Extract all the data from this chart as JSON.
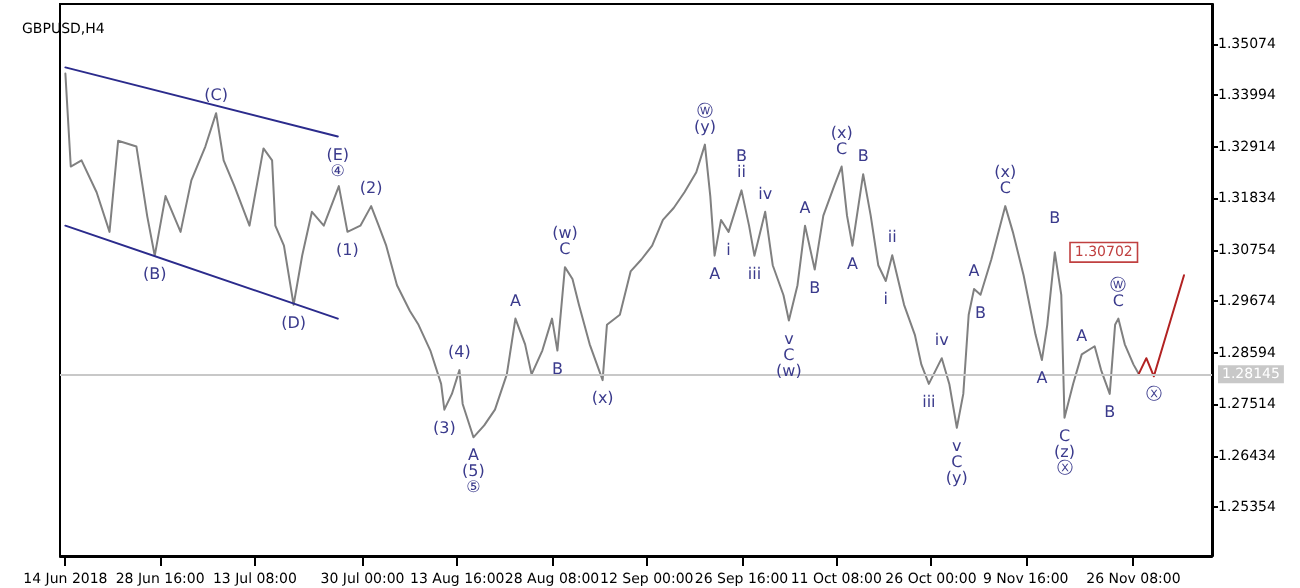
{
  "chart_data": {
    "type": "line",
    "title": "GBPUSD,H4",
    "grid": false,
    "marker": "none",
    "line_style": "solid",
    "xlim": [
      "2018-06-13T04:00",
      "2018-12-08T12:00"
    ],
    "ylim": [
      1.2433,
      1.3591
    ],
    "xticks": [
      {
        "value": "2018-06-14T00:00",
        "label": "14 Jun 2018"
      },
      {
        "value": "2018-06-28T16:00",
        "label": "28 Jun 16:00"
      },
      {
        "value": "2018-07-13T08:00",
        "label": "13 Jul 08:00"
      },
      {
        "value": "2018-07-30T00:00",
        "label": "30 Jul 00:00"
      },
      {
        "value": "2018-08-13T16:00",
        "label": "13 Aug 16:00"
      },
      {
        "value": "2018-08-28T08:00",
        "label": "28 Aug 08:00"
      },
      {
        "value": "2018-09-12T00:00",
        "label": "12 Sep 00:00"
      },
      {
        "value": "2018-09-26T16:00",
        "label": "26 Sep 16:00"
      },
      {
        "value": "2018-10-11T08:00",
        "label": "11 Oct 08:00"
      },
      {
        "value": "2018-10-26T00:00",
        "label": "26 Oct 00:00"
      },
      {
        "value": "2018-11-09T16:00",
        "label": "9 Nov 16:00"
      },
      {
        "value": "2018-11-26T08:00",
        "label": "26 Nov 08:00"
      }
    ],
    "yticks": [
      1.25354,
      1.26434,
      1.27514,
      1.28594,
      1.29674,
      1.30754,
      1.31834,
      1.32914,
      1.33994,
      1.35074
    ],
    "series": [
      {
        "color": "#808080",
        "x": [
          "2018-06-14T00:00",
          "2018-06-14T20:00",
          "2018-06-16T12:00",
          "2018-06-18T20:00",
          "2018-06-20T20:00",
          "2018-06-22T04:00",
          "2018-06-25T00:00",
          "2018-06-26T16:00",
          "2018-06-27T20:00",
          "2018-06-29T12:00",
          "2018-07-01T20:00",
          "2018-07-03T12:00",
          "2018-07-05T16:00",
          "2018-07-07T08:00",
          "2018-07-08T12:00",
          "2018-07-10T04:00",
          "2018-07-12T12:00",
          "2018-07-14T16:00",
          "2018-07-16T00:00",
          "2018-07-16T12:00",
          "2018-07-17T20:00",
          "2018-07-19T08:00",
          "2018-07-20T16:00",
          "2018-07-22T04:00",
          "2018-07-24T00:00",
          "2018-07-26T08:00",
          "2018-07-27T16:00",
          "2018-07-29T16:00",
          "2018-07-31T08:00",
          "2018-08-01T12:00",
          "2018-08-02T16:00",
          "2018-08-04T08:00",
          "2018-08-06T08:00",
          "2018-08-07T16:00",
          "2018-08-09T12:00",
          "2018-08-11T04:00",
          "2018-08-11T16:00",
          "2018-08-12T20:00",
          "2018-08-14T00:00",
          "2018-08-14T12:00",
          "2018-08-16T04:00",
          "2018-08-17T20:00",
          "2018-08-19T12:00",
          "2018-08-21T08:00",
          "2018-08-22T16:00",
          "2018-08-24T04:00",
          "2018-08-25T04:00",
          "2018-08-26T20:00",
          "2018-08-28T08:00",
          "2018-08-29T04:00",
          "2018-08-30T08:00",
          "2018-08-31T12:00",
          "2018-09-01T12:00",
          "2018-09-03T04:00",
          "2018-09-05T04:00",
          "2018-09-05T20:00",
          "2018-09-07T20:00",
          "2018-09-09T12:00",
          "2018-09-11T04:00",
          "2018-09-12T20:00",
          "2018-09-14T12:00",
          "2018-09-16T04:00",
          "2018-09-17T20:00",
          "2018-09-19T16:00",
          "2018-09-21T00:00",
          "2018-09-21T20:00",
          "2018-09-22T12:00",
          "2018-09-23T12:00",
          "2018-09-24T16:00",
          "2018-09-26T16:00",
          "2018-09-27T20:00",
          "2018-09-28T16:00",
          "2018-09-30T08:00",
          "2018-10-01T12:00",
          "2018-10-03T04:00",
          "2018-10-04T00:00",
          "2018-10-05T08:00",
          "2018-10-06T12:00",
          "2018-10-08T00:00",
          "2018-10-09T08:00",
          "2018-10-11T00:00",
          "2018-10-12T04:00",
          "2018-10-13T00:00",
          "2018-10-13T20:00",
          "2018-10-15T12:00",
          "2018-10-16T16:00",
          "2018-10-17T20:00",
          "2018-10-19T00:00",
          "2018-10-20T00:00",
          "2018-10-21T20:00",
          "2018-10-23T12:00",
          "2018-10-24T12:00",
          "2018-10-25T16:00",
          "2018-10-27T16:00",
          "2018-10-28T20:00",
          "2018-10-30T00:00",
          "2018-10-31T00:00",
          "2018-10-31T20:00",
          "2018-11-01T16:00",
          "2018-11-02T16:00",
          "2018-11-04T08:00",
          "2018-11-06T12:00",
          "2018-11-07T16:00",
          "2018-11-09T08:00",
          "2018-11-11T04:00",
          "2018-11-12T04:00",
          "2018-11-13T00:00",
          "2018-11-14T04:00",
          "2018-11-15T04:00",
          "2018-11-15T16:00",
          "2018-11-17T00:00",
          "2018-11-18T08:00",
          "2018-11-20T08:00",
          "2018-11-21T08:00",
          "2018-11-22T16:00",
          "2018-11-23T12:00",
          "2018-11-24T00:00",
          "2018-11-25T00:00",
          "2018-11-26T08:00",
          "2018-11-27T04:00"
        ],
        "values": [
          1.3445,
          1.325,
          1.3263,
          1.3196,
          1.3113,
          1.3304,
          1.3292,
          1.3146,
          1.3063,
          1.3188,
          1.3113,
          1.3221,
          1.3292,
          1.3362,
          1.3263,
          1.3209,
          1.3126,
          1.3288,
          1.3263,
          1.3126,
          1.3084,
          1.296,
          1.3064,
          1.3155,
          1.3126,
          1.3209,
          1.3113,
          1.3126,
          1.3167,
          1.3126,
          1.3084,
          1.3001,
          1.2947,
          1.2918,
          1.2864,
          1.2794,
          1.274,
          1.2773,
          1.2823,
          1.2752,
          1.2682,
          1.2707,
          1.274,
          1.2814,
          1.2931,
          1.2877,
          1.2814,
          1.2864,
          1.2931,
          1.2864,
          1.3039,
          1.3014,
          1.296,
          1.2877,
          1.2802,
          1.2918,
          1.2939,
          1.303,
          1.3055,
          1.3084,
          1.3138,
          1.3163,
          1.3196,
          1.3238,
          1.3296,
          1.3188,
          1.3063,
          1.3138,
          1.3113,
          1.32,
          1.3126,
          1.3063,
          1.3155,
          1.3043,
          1.298,
          1.2927,
          1.3001,
          1.3126,
          1.3034,
          1.3147,
          1.3209,
          1.325,
          1.3147,
          1.3084,
          1.3234,
          1.3147,
          1.3043,
          1.301,
          1.3064,
          1.296,
          1.2897,
          1.2835,
          1.2794,
          1.2848,
          1.2794,
          1.2702,
          1.2773,
          1.2939,
          1.2993,
          1.2981,
          1.3055,
          1.3167,
          1.3113,
          1.3022,
          1.2898,
          1.2844,
          1.2918,
          1.307,
          1.2981,
          1.2723,
          1.2794,
          1.2856,
          1.2873,
          1.2823,
          1.2773,
          1.2918,
          1.2931,
          1.2877,
          1.2835,
          1.2815
        ]
      },
      {
        "color": "#b22222",
        "x": [
          "2018-11-27T04:00",
          "2018-11-28T08:00",
          "2018-11-29T12:00",
          "2018-12-04T04:00"
        ],
        "values": [
          1.2815,
          1.2848,
          1.281,
          1.3022
        ]
      },
      {
        "color": "#2b2b8c",
        "x": [
          "2018-06-14T00:00",
          "2018-07-26T04:00"
        ],
        "values": [
          1.3458,
          1.3313
        ]
      },
      {
        "color": "#2b2b8c",
        "x": [
          "2018-06-14T00:00",
          "2018-07-26T04:00"
        ],
        "values": [
          1.3126,
          1.2931
        ]
      }
    ],
    "ref_lines": [
      {
        "axis": "y",
        "value": 1.28145,
        "label": "1.28145",
        "color": "#c8c8c8"
      }
    ],
    "annotations": [
      {
        "text": "1.30702",
        "x": "2018-11-14T04:00",
        "y": 1.307
      },
      {
        "text": "ii",
        "x": "2018-09-26T16:00",
        "y": 1.32
      },
      {
        "text": "i",
        "x": "2018-09-24T16:00",
        "y": 1.3113
      },
      {
        "text": "iv",
        "x": "2018-09-30T08:00",
        "y": 1.3155
      },
      {
        "text": "iii",
        "x": "2018-09-28T16:00",
        "y": 1.3063
      },
      {
        "text": "v",
        "x": "2018-10-04T00:00",
        "y": 1.2927
      },
      {
        "text": "ii",
        "x": "2018-10-20T00:00",
        "y": 1.3064
      },
      {
        "text": "i",
        "x": "2018-10-19T00:00",
        "y": 1.301
      },
      {
        "text": "iv",
        "x": "2018-10-27T16:00",
        "y": 1.2848
      },
      {
        "text": "iii",
        "x": "2018-10-25T16:00",
        "y": 1.2794
      },
      {
        "text": "v",
        "x": "2018-10-30T00:00",
        "y": 1.2702
      },
      {
        "text": "A",
        "x": "2018-08-16T04:00",
        "y": 1.2682
      },
      {
        "text": "A",
        "x": "2018-08-22T16:00",
        "y": 1.2931
      },
      {
        "text": "B",
        "x": "2018-08-29T04:00",
        "y": 1.2864
      },
      {
        "text": "C",
        "x": "2018-08-30T08:00",
        "y": 1.3039
      },
      {
        "text": "A",
        "x": "2018-09-22T12:00",
        "y": 1.3063
      },
      {
        "text": "B",
        "x": "2018-09-26T16:00",
        "y": 1.32
      },
      {
        "text": "C",
        "x": "2018-10-04T00:00",
        "y": 1.2927
      },
      {
        "text": "A",
        "x": "2018-10-06T12:00",
        "y": 1.3126
      },
      {
        "text": "B",
        "x": "2018-10-08T00:00",
        "y": 1.3034
      },
      {
        "text": "C",
        "x": "2018-10-12T04:00",
        "y": 1.325
      },
      {
        "text": "A",
        "x": "2018-10-13T20:00",
        "y": 1.3084
      },
      {
        "text": "B",
        "x": "2018-10-15T12:00",
        "y": 1.3234
      },
      {
        "text": "C",
        "x": "2018-10-30T00:00",
        "y": 1.2702
      },
      {
        "text": "A",
        "x": "2018-11-01T16:00",
        "y": 1.2993
      },
      {
        "text": "B",
        "x": "2018-11-02T16:00",
        "y": 1.2981
      },
      {
        "text": "C",
        "x": "2018-11-06T12:00",
        "y": 1.3167
      },
      {
        "text": "A",
        "x": "2018-11-12T04:00",
        "y": 1.2844
      },
      {
        "text": "B",
        "x": "2018-11-14T04:00",
        "y": 1.307
      },
      {
        "text": "C",
        "x": "2018-11-15T16:00",
        "y": 1.2723
      },
      {
        "text": "A",
        "x": "2018-11-18T08:00",
        "y": 1.2856
      },
      {
        "text": "B",
        "x": "2018-11-22T16:00",
        "y": 1.2773
      },
      {
        "text": "C",
        "x": "2018-11-24T00:00",
        "y": 1.2931
      },
      {
        "text": "(C)",
        "x": "2018-07-07T08:00",
        "y": 1.3362
      },
      {
        "text": "(E)",
        "x": "2018-07-26T04:00",
        "y": 1.3313
      },
      {
        "text": "(B)",
        "x": "2018-06-27T20:00",
        "y": 1.3063
      },
      {
        "text": "(D)",
        "x": "2018-07-19T08:00",
        "y": 1.296
      },
      {
        "text": "(1)",
        "x": "2018-07-27T16:00",
        "y": 1.3113
      },
      {
        "text": "(2)",
        "x": "2018-07-31T08:00",
        "y": 1.3167
      },
      {
        "text": "(4)",
        "x": "2018-08-14T00:00",
        "y": 1.2823
      },
      {
        "text": "(3)",
        "x": "2018-08-11T16:00",
        "y": 1.274
      },
      {
        "text": "(5)",
        "x": "2018-08-16T04:00",
        "y": 1.2682
      },
      {
        "text": "(w)",
        "x": "2018-08-30T08:00",
        "y": 1.3039
      },
      {
        "text": "(x)",
        "x": "2018-09-05T04:00",
        "y": 1.2802
      },
      {
        "text": "(y)",
        "x": "2018-09-21T00:00",
        "y": 1.3296
      },
      {
        "text": "(w)",
        "x": "2018-10-04T00:00",
        "y": 1.2927
      },
      {
        "text": "(x)",
        "x": "2018-10-12T04:00",
        "y": 1.325
      },
      {
        "text": "(y)",
        "x": "2018-10-30T00:00",
        "y": 1.2702
      },
      {
        "text": "(x)",
        "x": "2018-11-06T12:00",
        "y": 1.3167
      },
      {
        "text": "(z)",
        "x": "2018-11-15T16:00",
        "y": 1.2723
      },
      {
        "text": "④",
        "x": "2018-07-26T04:00",
        "y": 1.3313
      },
      {
        "text": "⑤",
        "x": "2018-08-16T04:00",
        "y": 1.2682
      },
      {
        "text": "ⓦ",
        "x": "2018-09-21T00:00",
        "y": 1.3296
      },
      {
        "text": "ⓧ",
        "x": "2018-11-15T16:00",
        "y": 1.2723
      },
      {
        "text": "ⓦ",
        "x": "2018-11-24T00:00",
        "y": 1.2931
      },
      {
        "text": "ⓧ",
        "x": "2018-11-29T12:00",
        "y": 1.281
      }
    ]
  }
}
